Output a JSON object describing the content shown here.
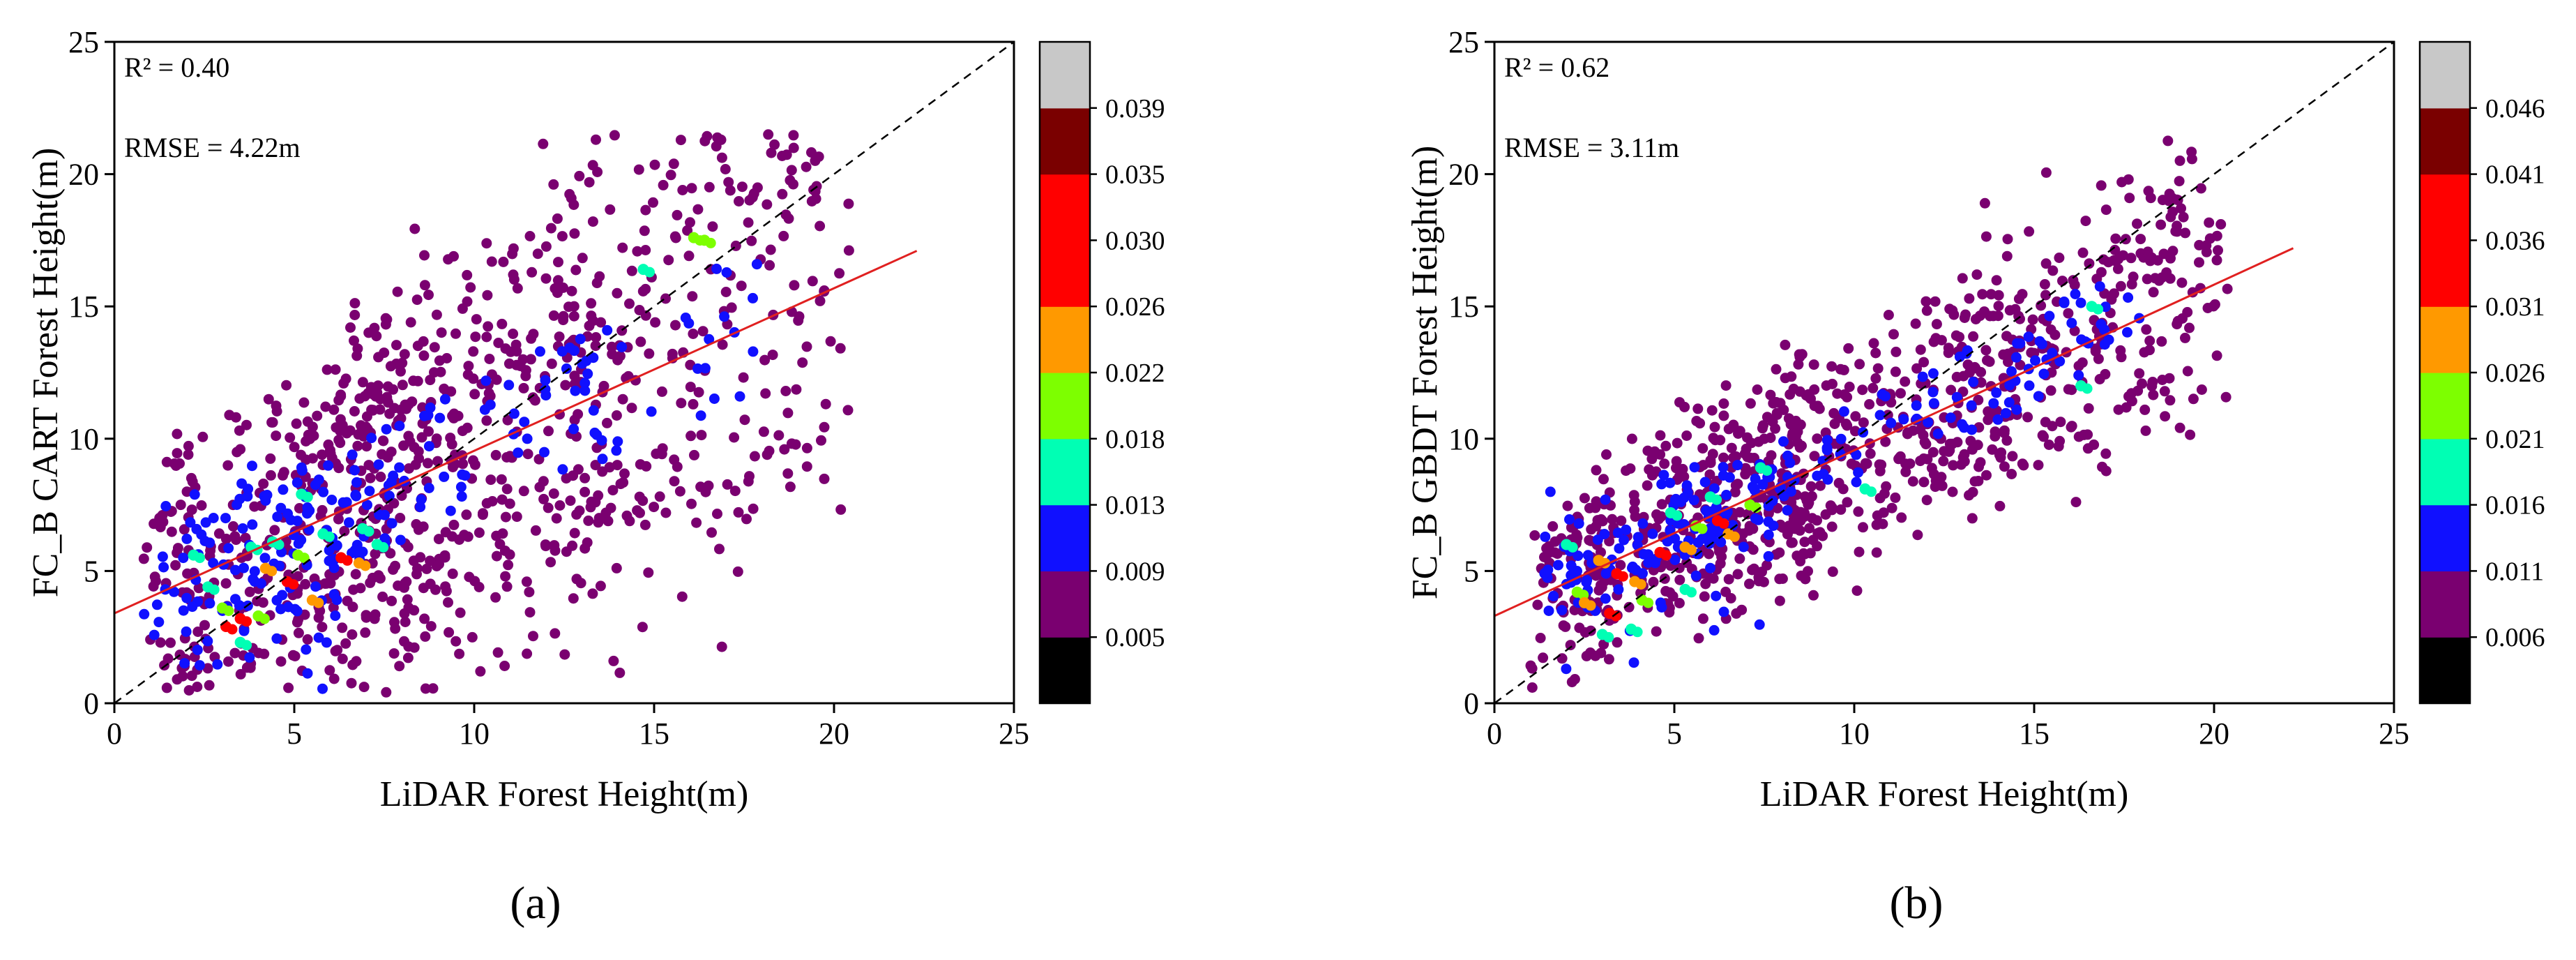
{
  "chart_data": [
    {
      "type": "scatter",
      "panel_label": "(a)",
      "xlabel": "LiDAR Forest Height(m)",
      "ylabel": "FC_B CART Forest Height(m)",
      "xlim": [
        0,
        25
      ],
      "ylim": [
        0,
        25
      ],
      "xticks": [
        0,
        5,
        10,
        15,
        20,
        25
      ],
      "yticks": [
        0,
        5,
        10,
        15,
        20,
        25
      ],
      "annotations": {
        "r2": "R² = 0.40",
        "rmse": "RMSE = 4.22m"
      },
      "one_to_one_line": {
        "from": [
          0,
          0
        ],
        "to": [
          25,
          25
        ],
        "style": "dashed",
        "color": "#000000"
      },
      "fit_line": {
        "from": [
          0,
          3.4
        ],
        "to": [
          22.3,
          17.1
        ],
        "color": "#e02020"
      },
      "colorbar": {
        "colors": [
          "#000000",
          "#7a0070",
          "#1010ff",
          "#00ffb4",
          "#7dff00",
          "#ff9900",
          "#ff0000",
          "#ff0000",
          "#7a0000",
          "#c8c8c8"
        ],
        "tick_labels": [
          "0.005",
          "0.009",
          "0.013",
          "0.018",
          "0.022",
          "0.026",
          "0.030",
          "0.035",
          "0.039"
        ]
      },
      "scatter": {
        "n": 1150,
        "seed": 7,
        "spread": 1.0,
        "slope": 0.6,
        "intercept": 3.6
      },
      "clusters": [
        {
          "x": 3.1,
          "y": 2.9,
          "color": "#ff0000"
        },
        {
          "x": 3.5,
          "y": 3.2,
          "color": "#ff0000"
        },
        {
          "x": 4.8,
          "y": 4.6,
          "color": "#ff0000"
        },
        {
          "x": 6.3,
          "y": 5.5,
          "color": "#ff0000"
        },
        {
          "x": 5.5,
          "y": 3.9,
          "color": "#ff9900"
        },
        {
          "x": 6.8,
          "y": 5.3,
          "color": "#ff9900"
        },
        {
          "x": 4.2,
          "y": 5.1,
          "color": "#ff9900"
        },
        {
          "x": 3.0,
          "y": 3.6,
          "color": "#7dff00"
        },
        {
          "x": 4.0,
          "y": 3.3,
          "color": "#7dff00"
        },
        {
          "x": 5.1,
          "y": 5.6,
          "color": "#7dff00"
        },
        {
          "x": 16.1,
          "y": 17.6,
          "color": "#7dff00"
        },
        {
          "x": 16.4,
          "y": 17.5,
          "color": "#7dff00"
        },
        {
          "x": 2.2,
          "y": 5.6,
          "color": "#00ffb4"
        },
        {
          "x": 2.6,
          "y": 4.4,
          "color": "#00ffb4"
        },
        {
          "x": 3.8,
          "y": 5.9,
          "color": "#00ffb4"
        },
        {
          "x": 4.4,
          "y": 6.1,
          "color": "#00ffb4"
        },
        {
          "x": 5.8,
          "y": 6.4,
          "color": "#00ffb4"
        },
        {
          "x": 6.9,
          "y": 6.6,
          "color": "#00ffb4"
        },
        {
          "x": 7.3,
          "y": 6.0,
          "color": "#00ffb4"
        },
        {
          "x": 5.2,
          "y": 7.9,
          "color": "#00ffb4"
        },
        {
          "x": 14.7,
          "y": 16.4,
          "color": "#00ffb4"
        },
        {
          "x": 3.5,
          "y": 2.3,
          "color": "#00ffb4"
        }
      ]
    },
    {
      "type": "scatter",
      "panel_label": "(b)",
      "xlabel": "LiDAR Forest Height(m)",
      "ylabel": "FC_B GBDT Forest Height(m)",
      "xlim": [
        0,
        25
      ],
      "ylim": [
        0,
        25
      ],
      "xticks": [
        0,
        5,
        10,
        15,
        20,
        25
      ],
      "yticks": [
        0,
        5,
        10,
        15,
        20,
        25
      ],
      "annotations": {
        "r2": "R² = 0.62",
        "rmse": "RMSE = 3.11m"
      },
      "one_to_one_line": {
        "from": [
          0,
          0
        ],
        "to": [
          25,
          25
        ],
        "style": "dashed",
        "color": "#000000"
      },
      "fit_line": {
        "from": [
          0,
          3.3
        ],
        "to": [
          22.2,
          17.2
        ],
        "color": "#e02020"
      },
      "colorbar": {
        "colors": [
          "#000000",
          "#7a0070",
          "#1010ff",
          "#00ffb4",
          "#7dff00",
          "#ff9900",
          "#ff0000",
          "#ff0000",
          "#7a0000",
          "#c8c8c8"
        ],
        "tick_labels": [
          "0.006",
          "0.011",
          "0.016",
          "0.021",
          "0.026",
          "0.031",
          "0.036",
          "0.041",
          "0.046"
        ]
      },
      "scatter": {
        "n": 1150,
        "seed": 19,
        "spread": 0.6,
        "slope": 0.65,
        "intercept": 3.3
      },
      "clusters": [
        {
          "x": 3.2,
          "y": 3.4,
          "color": "#ff0000"
        },
        {
          "x": 3.4,
          "y": 4.9,
          "color": "#ff0000"
        },
        {
          "x": 4.6,
          "y": 5.7,
          "color": "#ff0000"
        },
        {
          "x": 6.2,
          "y": 6.9,
          "color": "#ff0000"
        },
        {
          "x": 2.5,
          "y": 3.8,
          "color": "#ff9900"
        },
        {
          "x": 3.9,
          "y": 4.6,
          "color": "#ff9900"
        },
        {
          "x": 5.3,
          "y": 5.9,
          "color": "#ff9900"
        },
        {
          "x": 6.5,
          "y": 6.4,
          "color": "#ff9900"
        },
        {
          "x": 2.9,
          "y": 5.4,
          "color": "#ff9900"
        },
        {
          "x": 4.1,
          "y": 3.9,
          "color": "#7dff00"
        },
        {
          "x": 5.6,
          "y": 6.7,
          "color": "#7dff00"
        },
        {
          "x": 2.3,
          "y": 4.2,
          "color": "#7dff00"
        },
        {
          "x": 7.1,
          "y": 7.5,
          "color": "#7dff00"
        },
        {
          "x": 3.0,
          "y": 2.6,
          "color": "#00ffb4"
        },
        {
          "x": 3.8,
          "y": 2.8,
          "color": "#00ffb4"
        },
        {
          "x": 4.9,
          "y": 7.2,
          "color": "#00ffb4"
        },
        {
          "x": 6.0,
          "y": 7.8,
          "color": "#00ffb4"
        },
        {
          "x": 7.4,
          "y": 8.9,
          "color": "#00ffb4"
        },
        {
          "x": 10.3,
          "y": 8.1,
          "color": "#00ffb4"
        },
        {
          "x": 16.6,
          "y": 15.0,
          "color": "#00ffb4"
        },
        {
          "x": 16.3,
          "y": 12.0,
          "color": "#00ffb4"
        },
        {
          "x": 5.3,
          "y": 4.3,
          "color": "#00ffb4"
        },
        {
          "x": 2.0,
          "y": 6.0,
          "color": "#00ffb4"
        }
      ]
    }
  ]
}
